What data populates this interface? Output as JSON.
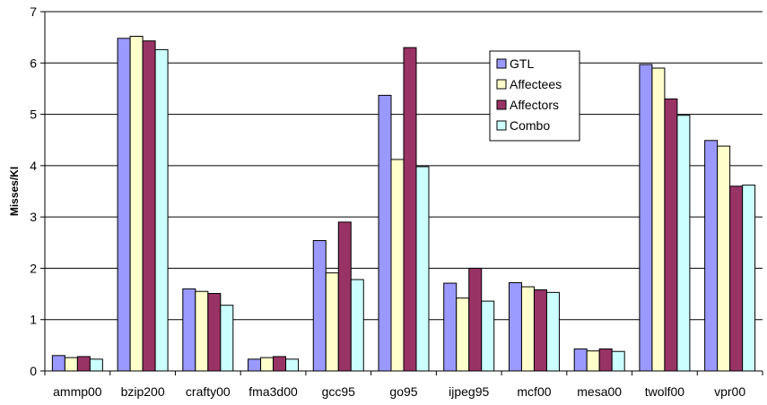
{
  "chart_data": {
    "type": "bar",
    "title": "",
    "xlabel": "",
    "ylabel": "Misses/KI",
    "ylim": [
      0,
      7
    ],
    "yticks": [
      0,
      1,
      2,
      3,
      4,
      5,
      6,
      7
    ],
    "grid": "horizontal",
    "legend_position": "top-right",
    "categories": [
      "ammp00",
      "bzip200",
      "crafty00",
      "fma3d00",
      "gcc95",
      "go95",
      "ijpeg95",
      "mcf00",
      "mesa00",
      "twolf00",
      "vpr00"
    ],
    "series": [
      {
        "name": "GTL",
        "color": "#9999ff",
        "values": [
          0.3,
          6.48,
          1.6,
          0.23,
          2.54,
          5.37,
          1.71,
          1.72,
          0.43,
          5.97,
          4.49
        ]
      },
      {
        "name": "Affectees",
        "color": "#ffffcc",
        "values": [
          0.26,
          6.52,
          1.55,
          0.26,
          1.91,
          4.12,
          1.42,
          1.64,
          0.39,
          5.9,
          4.38
        ]
      },
      {
        "name": "Affectors",
        "color": "#993366",
        "values": [
          0.28,
          6.43,
          1.51,
          0.28,
          2.9,
          6.3,
          2.0,
          1.58,
          0.43,
          5.3,
          3.6
        ]
      },
      {
        "name": "Combo",
        "color": "#ccffff",
        "values": [
          0.23,
          6.26,
          1.28,
          0.23,
          1.78,
          3.98,
          1.36,
          1.53,
          0.38,
          4.98,
          3.62
        ]
      }
    ]
  }
}
